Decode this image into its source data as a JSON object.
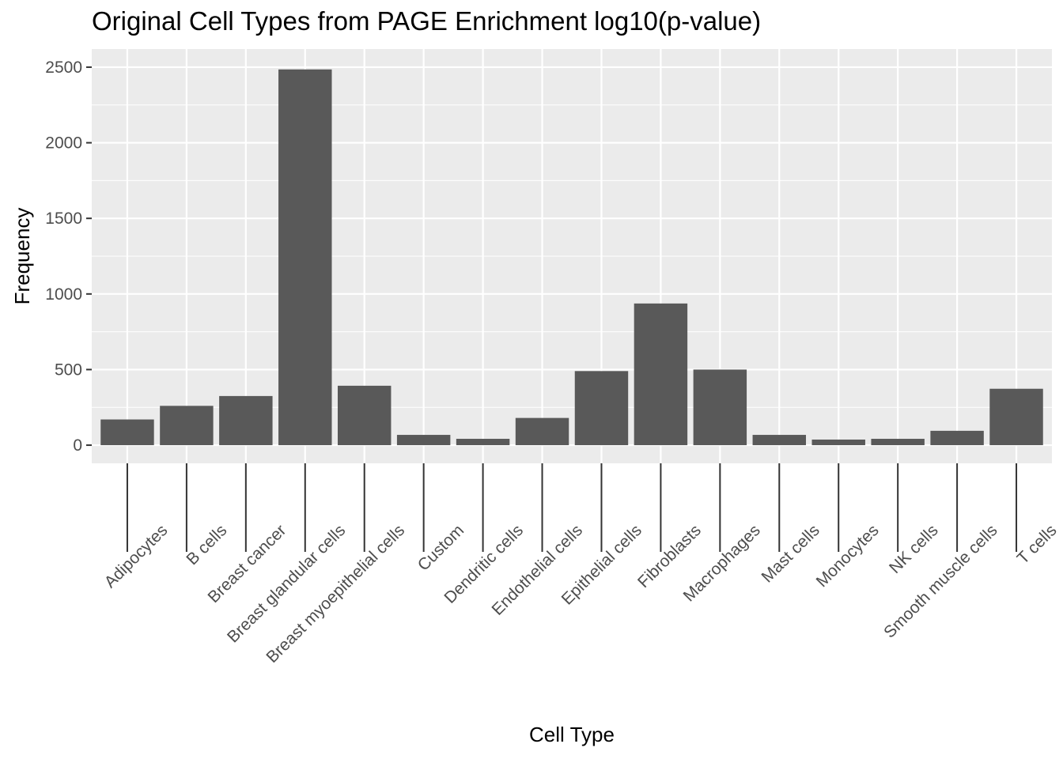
{
  "chart_data": {
    "type": "bar",
    "title": "Original Cell Types from PAGE Enrichment log10(p-value)",
    "xlabel": "Cell Type",
    "ylabel": "Frequency",
    "ylim": [
      -120,
      2620
    ],
    "yticks": [
      0,
      500,
      1000,
      1500,
      2000,
      2500
    ],
    "grid": true,
    "categories": [
      "Adipocytes",
      "B cells",
      "Breast cancer",
      "Breast glandular cells",
      "Breast myoepithelial cells",
      "Custom",
      "Dendritic cells",
      "Endothelial cells",
      "Epithelial cells",
      "Fibroblasts",
      "Macrophages",
      "Mast cells",
      "Monocytes",
      "NK cells",
      "Smooth muscle cells",
      "T cells"
    ],
    "values": [
      170,
      260,
      325,
      2485,
      393,
      68,
      42,
      180,
      490,
      937,
      500,
      68,
      37,
      42,
      95,
      373
    ],
    "colors": {
      "panel": "#ebebeb",
      "grid": "#ffffff",
      "bar": "#595959",
      "tick": "#333333",
      "tick_text": "#4d4d4d"
    }
  }
}
